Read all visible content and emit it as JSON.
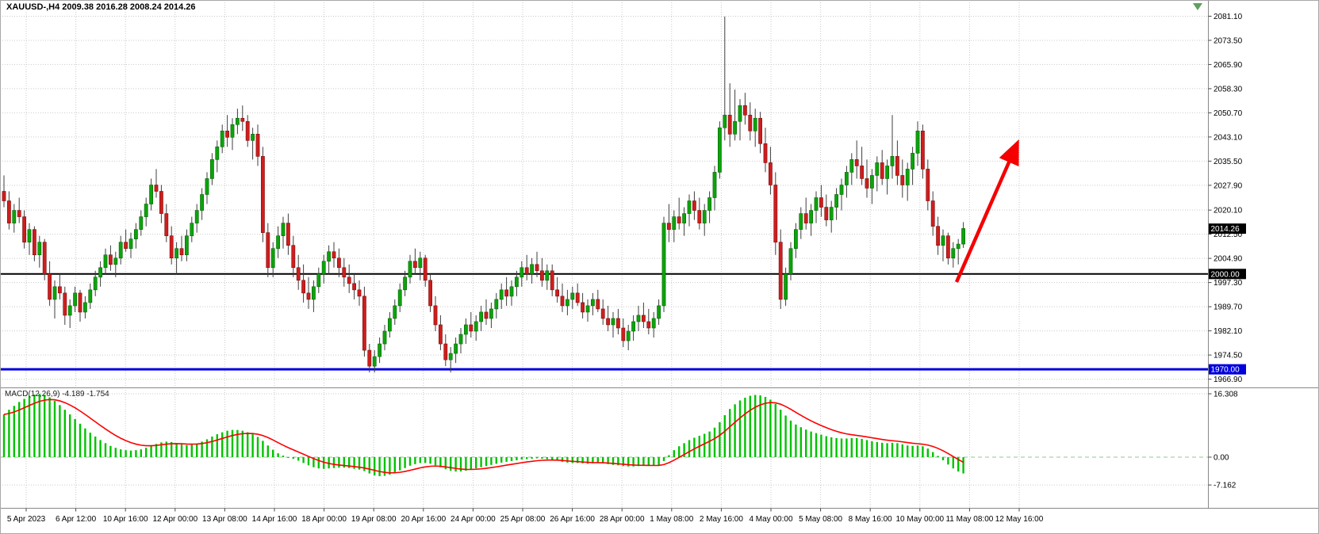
{
  "header": {
    "symbol_period": "XAUUSD-,H4",
    "ohlc_text": "2009.38 2016.28 2008.24 2014.26",
    "title": "XAUUSD-,H4  2009.38 2016.28 2008.24 2014.26"
  },
  "macd_panel": {
    "label": "MACD(12,26,9) -4.189 -1.754",
    "indicator": "MACD",
    "params": "12,26,9",
    "macd_value": "-4.189",
    "signal_value": "-1.754"
  },
  "overlays": {
    "current_price_badge": "2014.26",
    "levels": [
      {
        "label": "2000.00",
        "price": 2000.0,
        "color": "#000000",
        "line_width": 2
      },
      {
        "label": "1970.00",
        "price": 1970.0,
        "color": "#0000dc",
        "line_width": 3
      }
    ],
    "trend_arrow": {
      "direction": "up",
      "color": "#f40000"
    }
  },
  "colors": {
    "background": "#ffffff",
    "grid": "#c9c9c9",
    "bull": "#0ca30c",
    "bull_edge": "#076607",
    "bear": "#cf1d1d",
    "bear_edge": "#7a1010",
    "wick": "#3f3f3f",
    "macd_bar": "#00c300",
    "macd_signal": "#fe0000",
    "macd_zero": "#8cc88c",
    "badge_black": "#000000",
    "badge_blue": "#0000dc",
    "separator": "#888888"
  },
  "chart_data": {
    "type": "candlestick",
    "symbol": "XAUUSD-",
    "timeframe": "H4",
    "current_ohlc": {
      "open": 2009.38,
      "high": 2016.28,
      "low": 2008.24,
      "close": 2014.26
    },
    "y_range": [
      1964.3,
      2086.2
    ],
    "price_ticks": [
      "2081.10",
      "2073.50",
      "2065.90",
      "2058.30",
      "2050.70",
      "2043.10",
      "2035.50",
      "2027.90",
      "2020.10",
      "2012.50",
      "2004.90",
      "1997.30",
      "1989.70",
      "1982.10",
      "1974.50",
      "1966.90"
    ],
    "time_ticks": [
      "5 Apr 2023",
      "6 Apr 12:00",
      "10 Apr 16:00",
      "12 Apr 00:00",
      "13 Apr 08:00",
      "14 Apr 16:00",
      "18 Apr 00:00",
      "19 Apr 08:00",
      "20 Apr 16:00",
      "24 Apr 00:00",
      "25 Apr 08:00",
      "26 Apr 16:00",
      "28 Apr 00:00",
      "1 May 08:00",
      "2 May 16:00",
      "4 May 00:00",
      "5 May 08:00",
      "8 May 16:00",
      "10 May 00:00",
      "11 May 08:00",
      "12 May 16:00"
    ],
    "candles": [
      [
        2026,
        2031,
        2021,
        2023
      ],
      [
        2023,
        2026,
        2014,
        2016
      ],
      [
        2016,
        2022,
        2013,
        2020
      ],
      [
        2020,
        2024,
        2016,
        2018
      ],
      [
        2018,
        2020,
        2008,
        2010
      ],
      [
        2010,
        2016,
        2006,
        2014
      ],
      [
        2014,
        2015,
        2004,
        2006
      ],
      [
        2006,
        2012,
        2002,
        2010
      ],
      [
        2010,
        2011,
        1998,
        2000
      ],
      [
        2000,
        2004,
        1990,
        1992
      ],
      [
        1992,
        1998,
        1986,
        1996
      ],
      [
        1996,
        2000,
        1992,
        1994
      ],
      [
        1994,
        1996,
        1984,
        1987
      ],
      [
        1987,
        1992,
        1983,
        1990
      ],
      [
        1990,
        1996,
        1988,
        1994
      ],
      [
        1994,
        1995,
        1985,
        1988
      ],
      [
        1988,
        1993,
        1986,
        1991
      ],
      [
        1991,
        1997,
        1989,
        1995
      ],
      [
        1995,
        2001,
        1993,
        1999
      ],
      [
        1999,
        2004,
        1996,
        2002
      ],
      [
        2002,
        2008,
        2000,
        2006
      ],
      [
        2006,
        2009,
        2001,
        2003
      ],
      [
        2003,
        2007,
        1999,
        2005
      ],
      [
        2005,
        2012,
        2003,
        2010
      ],
      [
        2010,
        2014,
        2007,
        2008
      ],
      [
        2008,
        2013,
        2005,
        2011
      ],
      [
        2011,
        2016,
        2008,
        2014
      ],
      [
        2014,
        2020,
        2012,
        2018
      ],
      [
        2018,
        2024,
        2015,
        2022
      ],
      [
        2022,
        2030,
        2020,
        2028
      ],
      [
        2028,
        2033,
        2024,
        2026
      ],
      [
        2026,
        2028,
        2016,
        2019
      ],
      [
        2019,
        2022,
        2010,
        2012
      ],
      [
        2012,
        2015,
        2003,
        2005
      ],
      [
        2005,
        2010,
        2000,
        2008
      ],
      [
        2008,
        2012,
        2004,
        2006
      ],
      [
        2006,
        2014,
        2004,
        2012
      ],
      [
        2012,
        2018,
        2010,
        2016
      ],
      [
        2016,
        2022,
        2013,
        2020
      ],
      [
        2020,
        2027,
        2017,
        2025
      ],
      [
        2025,
        2032,
        2022,
        2030
      ],
      [
        2030,
        2038,
        2028,
        2036
      ],
      [
        2036,
        2042,
        2032,
        2040
      ],
      [
        2040,
        2047,
        2038,
        2045
      ],
      [
        2045,
        2050,
        2040,
        2043
      ],
      [
        2043,
        2049,
        2039,
        2047
      ],
      [
        2047,
        2052,
        2044,
        2049
      ],
      [
        2049,
        2053,
        2045,
        2048
      ],
      [
        2048,
        2050,
        2040,
        2042
      ],
      [
        2042,
        2046,
        2036,
        2044
      ],
      [
        2044,
        2047,
        2034,
        2037
      ],
      [
        2037,
        2040,
        2010,
        2013
      ],
      [
        2013,
        2016,
        1999,
        2002
      ],
      [
        2002,
        2010,
        1999,
        2008
      ],
      [
        2008,
        2015,
        2005,
        2012
      ],
      [
        2012,
        2018,
        2008,
        2016
      ],
      [
        2016,
        2019,
        2006,
        2009
      ],
      [
        2009,
        2012,
        1999,
        2002
      ],
      [
        2002,
        2006,
        1995,
        1998
      ],
      [
        1998,
        2003,
        1991,
        1994
      ],
      [
        1994,
        1999,
        1989,
        1992
      ],
      [
        1992,
        1998,
        1988,
        1996
      ],
      [
        1996,
        2002,
        1994,
        2000
      ],
      [
        2000,
        2006,
        1997,
        2004
      ],
      [
        2004,
        2009,
        2000,
        2007
      ],
      [
        2007,
        2010,
        2002,
        2005
      ],
      [
        2005,
        2008,
        1999,
        2002
      ],
      [
        2002,
        2005,
        1996,
        1999
      ],
      [
        1999,
        2003,
        1994,
        1997
      ],
      [
        1997,
        2000,
        1992,
        1995
      ],
      [
        1995,
        1998,
        1990,
        1993
      ],
      [
        1993,
        1996,
        1974,
        1976
      ],
      [
        1976,
        1978,
        1969,
        1971
      ],
      [
        1971,
        1976,
        1969,
        1974
      ],
      [
        1974,
        1980,
        1972,
        1978
      ],
      [
        1978,
        1984,
        1976,
        1982
      ],
      [
        1982,
        1988,
        1980,
        1986
      ],
      [
        1986,
        1992,
        1984,
        1990
      ],
      [
        1990,
        1997,
        1988,
        1995
      ],
      [
        1995,
        2001,
        1993,
        1999
      ],
      [
        1999,
        2006,
        1997,
        2004
      ],
      [
        2004,
        2008,
        2000,
        2002
      ],
      [
        2002,
        2007,
        1998,
        2005
      ],
      [
        2005,
        2006,
        1996,
        1998
      ],
      [
        1998,
        2000,
        1988,
        1990
      ],
      [
        1990,
        1993,
        1982,
        1984
      ],
      [
        1984,
        1987,
        1976,
        1978
      ],
      [
        1978,
        1981,
        1971,
        1973
      ],
      [
        1973,
        1977,
        1969,
        1975
      ],
      [
        1975,
        1980,
        1972,
        1978
      ],
      [
        1978,
        1983,
        1975,
        1981
      ],
      [
        1981,
        1986,
        1978,
        1984
      ],
      [
        1984,
        1988,
        1980,
        1982
      ],
      [
        1982,
        1987,
        1979,
        1985
      ],
      [
        1985,
        1990,
        1982,
        1988
      ],
      [
        1988,
        1992,
        1984,
        1986
      ],
      [
        1986,
        1991,
        1983,
        1989
      ],
      [
        1989,
        1994,
        1986,
        1992
      ],
      [
        1992,
        1997,
        1989,
        1995
      ],
      [
        1995,
        1999,
        1990,
        1993
      ],
      [
        1993,
        1998,
        1990,
        1996
      ],
      [
        1996,
        2001,
        1993,
        1999
      ],
      [
        1999,
        2004,
        1996,
        2002
      ],
      [
        2002,
        2006,
        1998,
        2000
      ],
      [
        2000,
        2005,
        1997,
        2003
      ],
      [
        2003,
        2007,
        1999,
        2001
      ],
      [
        2001,
        2005,
        1996,
        1998
      ],
      [
        1998,
        2003,
        1995,
        2001
      ],
      [
        2001,
        2003,
        1993,
        1995
      ],
      [
        1995,
        1999,
        1991,
        1993
      ],
      [
        1993,
        1997,
        1988,
        1990
      ],
      [
        1990,
        1995,
        1987,
        1992
      ],
      [
        1992,
        1996,
        1989,
        1994
      ],
      [
        1994,
        1997,
        1990,
        1991
      ],
      [
        1991,
        1994,
        1986,
        1988
      ],
      [
        1988,
        1992,
        1985,
        1990
      ],
      [
        1990,
        1994,
        1987,
        1992
      ],
      [
        1992,
        1995,
        1988,
        1989
      ],
      [
        1989,
        1992,
        1984,
        1986
      ],
      [
        1986,
        1990,
        1982,
        1984
      ],
      [
        1984,
        1988,
        1980,
        1986
      ],
      [
        1986,
        1989,
        1981,
        1983
      ],
      [
        1983,
        1986,
        1977,
        1979
      ],
      [
        1979,
        1984,
        1976,
        1982
      ],
      [
        1982,
        1987,
        1979,
        1985
      ],
      [
        1985,
        1990,
        1982,
        1987
      ],
      [
        1987,
        1991,
        1983,
        1985
      ],
      [
        1985,
        1989,
        1981,
        1983
      ],
      [
        1983,
        1988,
        1980,
        1986
      ],
      [
        1986,
        1992,
        1984,
        1990
      ],
      [
        1990,
        2018,
        1988,
        2016
      ],
      [
        2016,
        2022,
        2010,
        2014
      ],
      [
        2014,
        2020,
        2010,
        2018
      ],
      [
        2018,
        2024,
        2014,
        2016
      ],
      [
        2016,
        2021,
        2012,
        2019
      ],
      [
        2019,
        2025,
        2015,
        2023
      ],
      [
        2023,
        2026,
        2017,
        2020
      ],
      [
        2020,
        2024,
        2014,
        2016
      ],
      [
        2016,
        2022,
        2012,
        2020
      ],
      [
        2020,
        2026,
        2016,
        2024
      ],
      [
        2024,
        2034,
        2020,
        2032
      ],
      [
        2032,
        2048,
        2030,
        2046
      ],
      [
        2046,
        2081,
        2042,
        2050
      ],
      [
        2050,
        2060,
        2040,
        2044
      ],
      [
        2044,
        2058,
        2042,
        2048
      ],
      [
        2048,
        2055,
        2042,
        2053
      ],
      [
        2053,
        2057,
        2047,
        2050
      ],
      [
        2050,
        2054,
        2042,
        2045
      ],
      [
        2045,
        2052,
        2040,
        2049
      ],
      [
        2049,
        2051,
        2038,
        2041
      ],
      [
        2041,
        2046,
        2032,
        2035
      ],
      [
        2035,
        2040,
        2025,
        2028
      ],
      [
        2028,
        2032,
        2006,
        2010
      ],
      [
        2010,
        2014,
        1989,
        1992
      ],
      [
        1992,
        2002,
        1990,
        2000
      ],
      [
        2000,
        2010,
        1998,
        2008
      ],
      [
        2008,
        2016,
        2005,
        2014
      ],
      [
        2014,
        2021,
        2011,
        2019
      ],
      [
        2019,
        2024,
        2014,
        2016
      ],
      [
        2016,
        2022,
        2012,
        2020
      ],
      [
        2020,
        2026,
        2016,
        2024
      ],
      [
        2024,
        2028,
        2018,
        2021
      ],
      [
        2021,
        2025,
        2015,
        2017
      ],
      [
        2017,
        2023,
        2013,
        2021
      ],
      [
        2021,
        2027,
        2017,
        2025
      ],
      [
        2025,
        2030,
        2020,
        2028
      ],
      [
        2028,
        2034,
        2024,
        2032
      ],
      [
        2032,
        2038,
        2028,
        2036
      ],
      [
        2036,
        2042,
        2030,
        2034
      ],
      [
        2034,
        2040,
        2028,
        2030
      ],
      [
        2030,
        2036,
        2024,
        2027
      ],
      [
        2027,
        2033,
        2022,
        2031
      ],
      [
        2031,
        2037,
        2026,
        2035
      ],
      [
        2035,
        2039,
        2028,
        2030
      ],
      [
        2030,
        2036,
        2025,
        2034
      ],
      [
        2034,
        2050,
        2030,
        2037
      ],
      [
        2037,
        2042,
        2028,
        2031
      ],
      [
        2031,
        2036,
        2024,
        2028
      ],
      [
        2028,
        2035,
        2023,
        2033
      ],
      [
        2033,
        2040,
        2028,
        2038
      ],
      [
        2038,
        2048,
        2034,
        2045
      ],
      [
        2045,
        2047,
        2030,
        2033
      ],
      [
        2033,
        2036,
        2020,
        2023
      ],
      [
        2023,
        2026,
        2012,
        2015
      ],
      [
        2015,
        2018,
        2006,
        2009
      ],
      [
        2009,
        2014,
        2004,
        2012
      ],
      [
        2012,
        2013,
        2003,
        2005
      ],
      [
        2005,
        2010,
        2002,
        2008
      ],
      [
        2008,
        2011,
        2003,
        2009.4
      ],
      [
        2009.4,
        2016.3,
        2008.2,
        2014.3
      ]
    ],
    "macd": {
      "params": [
        12,
        26,
        9
      ],
      "macd_value": -4.189,
      "signal_value": -1.754,
      "axis_ticks": [
        "16.308",
        "0.00",
        "-7.162"
      ],
      "y_range": [
        -13.0,
        17.9
      ],
      "histogram": [
        11,
        12.2,
        13.2,
        14.2,
        15,
        15.7,
        16.1,
        16.3,
        16,
        15.4,
        14.5,
        13.4,
        12.2,
        11,
        9.8,
        8.6,
        7.4,
        6.3,
        5.3,
        4.4,
        3.6,
        2.9,
        2.4,
        2,
        1.8,
        1.7,
        1.8,
        2,
        2.4,
        2.9,
        3.4,
        3.8,
        4,
        3.9,
        3.6,
        3.3,
        3.1,
        3.2,
        3.5,
        4,
        4.6,
        5.3,
        5.9,
        6.4,
        6.8,
        7,
        7,
        6.8,
        6.4,
        5.9,
        5.2,
        4.2,
        3,
        1.9,
        1,
        0.4,
        0,
        -0.4,
        -0.9,
        -1.5,
        -2.1,
        -2.6,
        -2.9,
        -3,
        -2.9,
        -2.8,
        -2.7,
        -2.7,
        -2.8,
        -3,
        -3.2,
        -3.6,
        -4.2,
        -4.7,
        -4.9,
        -4.8,
        -4.5,
        -4,
        -3.4,
        -2.8,
        -2.2,
        -1.8,
        -1.5,
        -1.5,
        -1.7,
        -2.1,
        -2.6,
        -3.1,
        -3.5,
        -3.7,
        -3.7,
        -3.5,
        -3.2,
        -2.9,
        -2.6,
        -2.3,
        -2,
        -1.7,
        -1.4,
        -1.2,
        -1,
        -0.8,
        -0.6,
        -0.5,
        -0.4,
        -0.3,
        -0.4,
        -0.5,
        -0.7,
        -0.9,
        -1.2,
        -1.4,
        -1.5,
        -1.5,
        -1.6,
        -1.7,
        -1.6,
        -1.5,
        -1.6,
        -1.8,
        -2,
        -2.1,
        -2.3,
        -2.4,
        -2.4,
        -2.3,
        -2.2,
        -2.2,
        -2.2,
        -2.1,
        -1,
        0.5,
        1.8,
        2.8,
        3.6,
        4.4,
        5,
        5.5,
        6,
        6.6,
        7.6,
        9,
        10.8,
        12.4,
        13.6,
        14.6,
        15.3,
        15.8,
        16,
        15.9,
        15.5,
        14.8,
        13.7,
        12.2,
        10.7,
        9.4,
        8.4,
        7.7,
        7.1,
        6.6,
        6.2,
        5.8,
        5.4,
        5.1,
        4.9,
        4.8,
        4.8,
        4.9,
        4.9,
        4.7,
        4.4,
        4.1,
        3.9,
        3.7,
        3.6,
        3.7,
        3.6,
        3.3,
        3,
        2.9,
        3,
        2.8,
        2.2,
        1.3,
        0.3,
        -0.8,
        -1.9,
        -2.9,
        -3.7,
        -4.2
      ]
    }
  }
}
